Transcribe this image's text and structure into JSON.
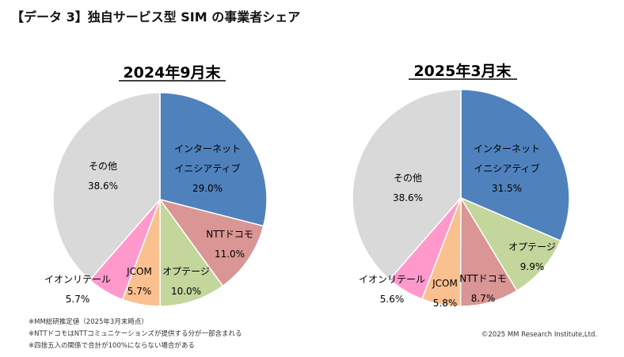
{
  "title": "【データ 3】独自サービス型 SIM の事業者シェア",
  "notes": [
    "※MM総研推定値（2025年3月末時点）",
    "※NTTドコモはNTTコミュニケーションズが提供する分が一部含まれる",
    "※四捨五入の関係で合計が100%にならない場合がある"
  ],
  "copyright": "©2025 MM Research Institute,Ltd.",
  "chart_data": [
    {
      "type": "pie",
      "title": "2024年9月末",
      "categories": [
        "インターネットイニシアティブ",
        "NTTドコモ",
        "オプテージ",
        "JCOM",
        "イオンリテール",
        "その他"
      ],
      "label_lines": [
        [
          "インターネット",
          "イニシアティブ"
        ],
        [
          "NTTドコモ"
        ],
        [
          "オプテージ"
        ],
        [
          "JCOM"
        ],
        [
          "イオンリテール"
        ],
        [
          "その他"
        ]
      ],
      "values": [
        29.0,
        11.0,
        10.0,
        5.7,
        5.7,
        38.6
      ],
      "value_labels": [
        "29.0%",
        "11.0%",
        "10.0%",
        "5.7%",
        "5.7%",
        "38.6%"
      ],
      "colors": [
        "#4f81bd",
        "#d99694",
        "#c3d69b",
        "#fac090",
        "#ff99cc",
        "#d9d9d9"
      ]
    },
    {
      "type": "pie",
      "title": "2025年3月末",
      "categories": [
        "インターネットイニシアティブ",
        "オプテージ",
        "NTTドコモ",
        "JCOM",
        "イオンリテール",
        "その他"
      ],
      "label_lines": [
        [
          "インターネット",
          "イニシアティブ"
        ],
        [
          "オプテージ"
        ],
        [
          "NTTドコモ"
        ],
        [
          "JCOM"
        ],
        [
          "イオンリテール"
        ],
        [
          "その他"
        ]
      ],
      "values": [
        31.5,
        9.9,
        8.7,
        5.8,
        5.6,
        38.6
      ],
      "value_labels": [
        "31.5%",
        "9.9%",
        "8.7%",
        "5.8%",
        "5.6%",
        "38.6%"
      ],
      "colors": [
        "#4f81bd",
        "#c3d69b",
        "#d99694",
        "#fac090",
        "#ff99cc",
        "#d9d9d9"
      ]
    }
  ]
}
